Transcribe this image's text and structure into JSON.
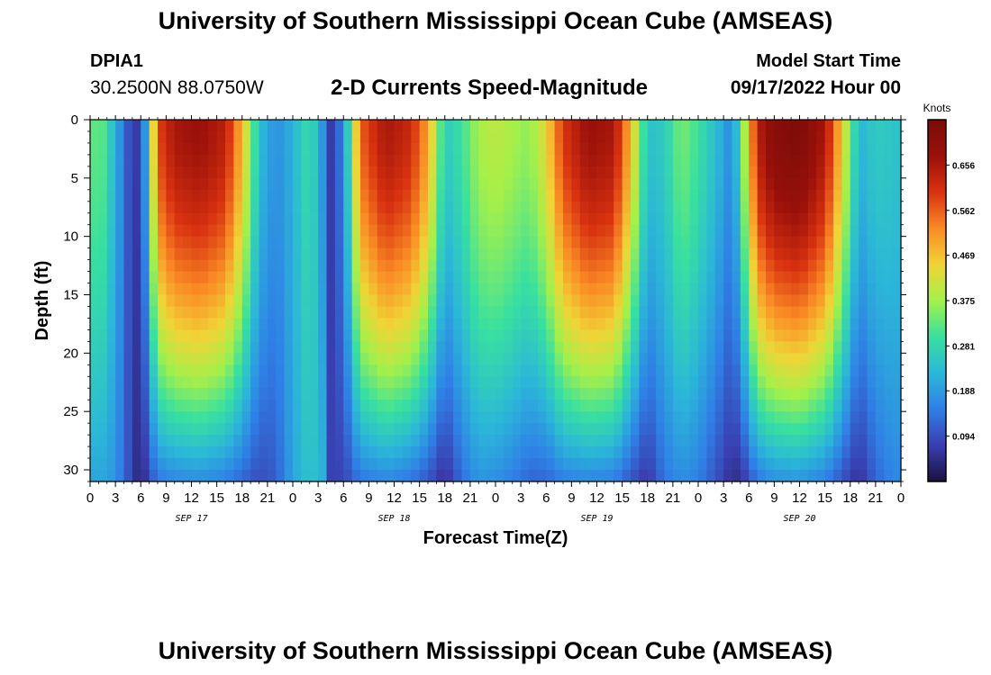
{
  "header": {
    "title": "University of Southern Mississippi Ocean Cube (AMSEAS)",
    "station": "DPIA1",
    "coords": "30.2500N  88.0750W",
    "subtitle": "2-D Currents Speed-Magnitude",
    "start_label": "Model Start Time",
    "start_value": "09/17/2022 Hour 00"
  },
  "footer": {
    "title": "University of Southern Mississippi Ocean Cube (AMSEAS)"
  },
  "chart_data": {
    "type": "heatmap",
    "title": "2-D Currents Speed-Magnitude",
    "xlabel": "Forecast Time(Z)",
    "ylabel": "Depth (ft)",
    "x_range_hours": [
      0,
      96
    ],
    "xlim": [
      0,
      96
    ],
    "ylim": [
      0,
      31
    ],
    "y_inverted": true,
    "x_tick_labels": [
      "0",
      "3",
      "6",
      "9",
      "12",
      "15",
      "18",
      "21",
      "0",
      "3",
      "6",
      "9",
      "12",
      "15",
      "18",
      "21",
      "0",
      "3",
      "6",
      "9",
      "12",
      "15",
      "18",
      "21",
      "0",
      "3",
      "6",
      "9",
      "12",
      "15",
      "18",
      "21",
      "0"
    ],
    "y_ticks": [
      0,
      5,
      10,
      15,
      20,
      25,
      30
    ],
    "day_labels": [
      {
        "hour": 12,
        "label": "SEP 17"
      },
      {
        "hour": 36,
        "label": "SEP 18"
      },
      {
        "hour": 60,
        "label": "SEP 19"
      },
      {
        "hour": 84,
        "label": "SEP 20"
      }
    ],
    "colorbar": {
      "title": "Knots",
      "min": 0.0,
      "max": 0.75,
      "ticks": [
        "0.094",
        "0.188",
        "0.281",
        "0.375",
        "0.469",
        "0.562",
        "0.656"
      ],
      "colors": [
        "#1a1040",
        "#3a3eb0",
        "#2f7fe6",
        "#2bb7d8",
        "#38e0a0",
        "#a4f04a",
        "#f0d436",
        "#fa8a24",
        "#d83210",
        "#9a100a",
        "#7a0c08"
      ]
    },
    "cells": {
      "nx": 96,
      "ny": 31
    },
    "profiles": [
      {
        "t": 0,
        "s": 0.33,
        "f": 0.2
      },
      {
        "t": 1.5,
        "s": 0.32,
        "f": 0.2
      },
      {
        "t": 3,
        "s": 0.22,
        "f": 0.18
      },
      {
        "t": 4.5,
        "s": 0.1,
        "f": 0.1
      },
      {
        "t": 5.5,
        "s": 0.07,
        "f": 0.05
      },
      {
        "t": 6.5,
        "s": 0.18,
        "f": 0.06
      },
      {
        "t": 8,
        "s": 0.58,
        "f": 0.14
      },
      {
        "t": 10,
        "s": 0.66,
        "f": 0.16
      },
      {
        "t": 13,
        "s": 0.68,
        "f": 0.17
      },
      {
        "t": 16,
        "s": 0.64,
        "f": 0.15
      },
      {
        "t": 18,
        "s": 0.48,
        "f": 0.12
      },
      {
        "t": 20,
        "s": 0.24,
        "f": 0.09
      },
      {
        "t": 22,
        "s": 0.17,
        "f": 0.11
      },
      {
        "t": 24,
        "s": 0.22,
        "f": 0.2
      },
      {
        "t": 26,
        "s": 0.3,
        "f": 0.25
      },
      {
        "t": 27.5,
        "s": 0.18,
        "f": 0.22
      },
      {
        "t": 28.5,
        "s": 0.07,
        "f": 0.08
      },
      {
        "t": 30,
        "s": 0.16,
        "f": 0.08
      },
      {
        "t": 32,
        "s": 0.56,
        "f": 0.14
      },
      {
        "t": 35,
        "s": 0.66,
        "f": 0.16
      },
      {
        "t": 38,
        "s": 0.62,
        "f": 0.14
      },
      {
        "t": 40,
        "s": 0.5,
        "f": 0.1
      },
      {
        "t": 42,
        "s": 0.26,
        "f": 0.05
      },
      {
        "t": 44,
        "s": 0.3,
        "f": 0.13
      },
      {
        "t": 46,
        "s": 0.38,
        "f": 0.18
      },
      {
        "t": 48,
        "s": 0.4,
        "f": 0.17
      },
      {
        "t": 50,
        "s": 0.38,
        "f": 0.15
      },
      {
        "t": 52,
        "s": 0.36,
        "f": 0.12
      },
      {
        "t": 54,
        "s": 0.44,
        "f": 0.12
      },
      {
        "t": 56,
        "s": 0.6,
        "f": 0.15
      },
      {
        "t": 59,
        "s": 0.68,
        "f": 0.16
      },
      {
        "t": 62,
        "s": 0.66,
        "f": 0.15
      },
      {
        "t": 64,
        "s": 0.48,
        "f": 0.1
      },
      {
        "t": 66,
        "s": 0.24,
        "f": 0.06
      },
      {
        "t": 68,
        "s": 0.26,
        "f": 0.14
      },
      {
        "t": 70,
        "s": 0.35,
        "f": 0.17
      },
      {
        "t": 72,
        "s": 0.3,
        "f": 0.15
      },
      {
        "t": 74,
        "s": 0.24,
        "f": 0.1
      },
      {
        "t": 76,
        "s": 0.16,
        "f": 0.05
      },
      {
        "t": 77,
        "s": 0.3,
        "f": 0.05
      },
      {
        "t": 79,
        "s": 0.64,
        "f": 0.14
      },
      {
        "t": 81,
        "s": 0.72,
        "f": 0.17
      },
      {
        "t": 84,
        "s": 0.74,
        "f": 0.18
      },
      {
        "t": 87,
        "s": 0.66,
        "f": 0.15
      },
      {
        "t": 89,
        "s": 0.46,
        "f": 0.1
      },
      {
        "t": 91,
        "s": 0.22,
        "f": 0.05
      },
      {
        "t": 93,
        "s": 0.26,
        "f": 0.12
      },
      {
        "t": 95,
        "s": 0.25,
        "f": 0.16
      },
      {
        "t": 96,
        "s": 0.24,
        "f": 0.16
      }
    ]
  }
}
